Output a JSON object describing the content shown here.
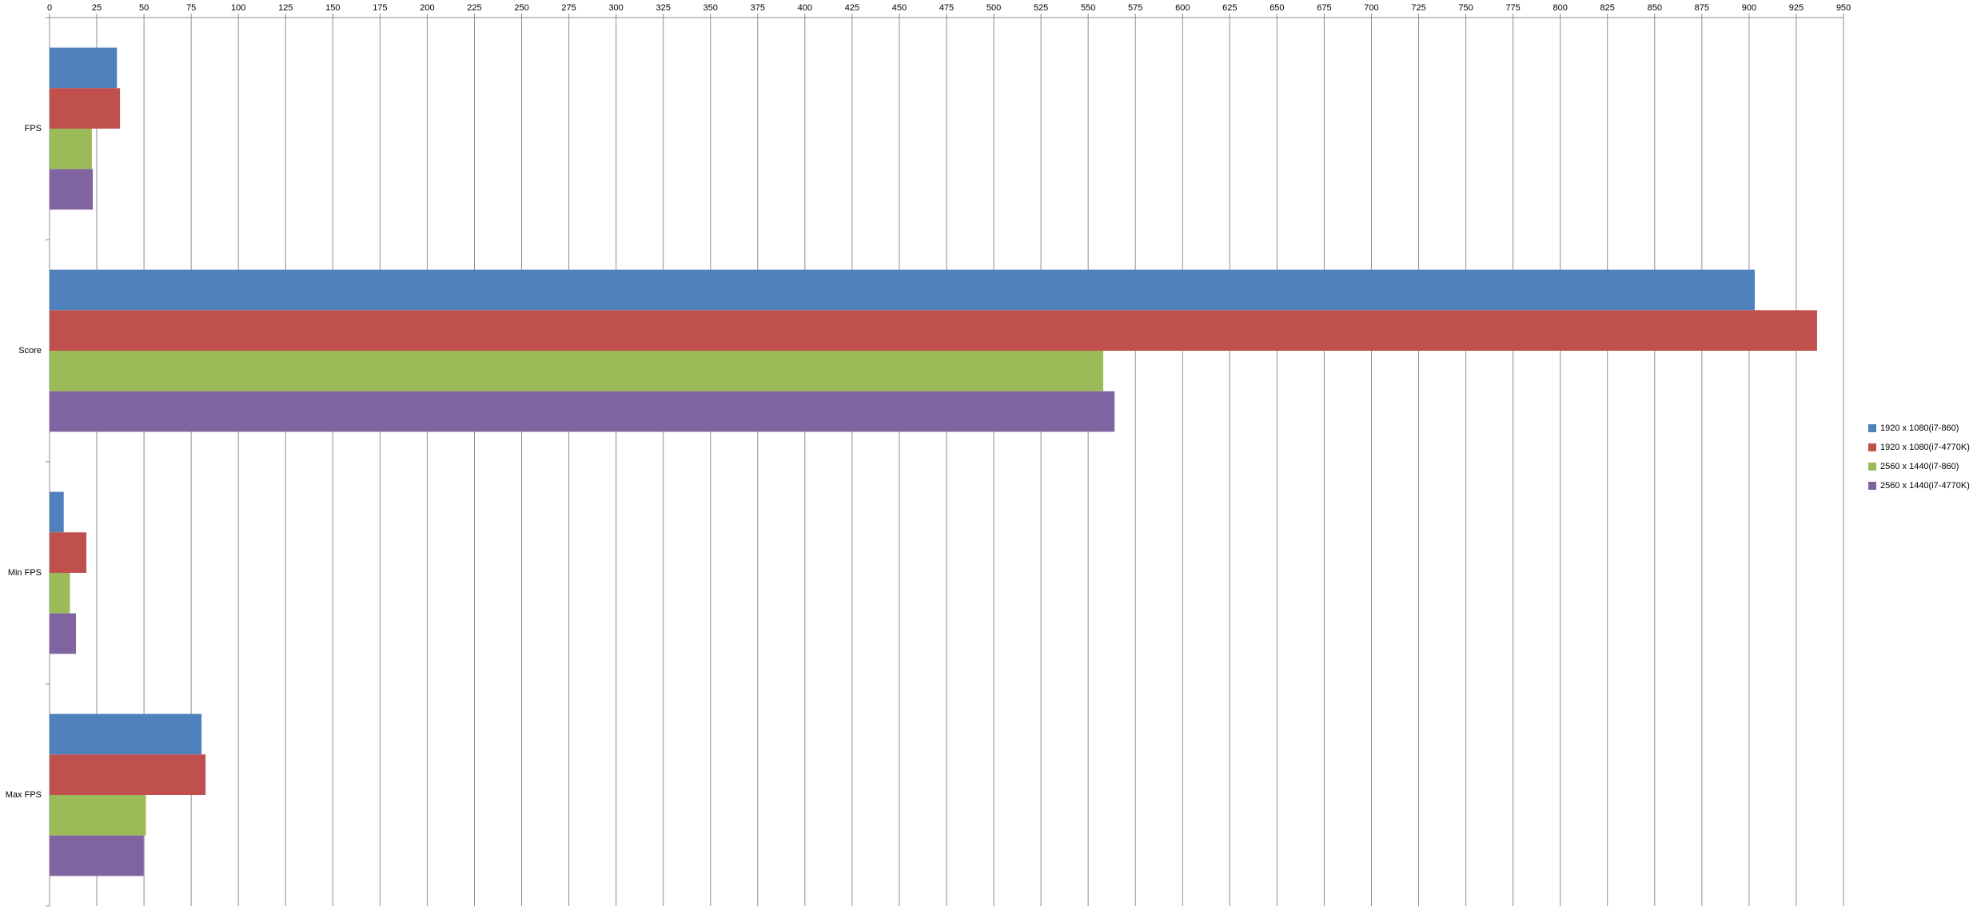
{
  "chart_data": {
    "type": "hbar",
    "categories": [
      "FPS",
      "Score",
      "Min FPS",
      "Max FPS"
    ],
    "series": [
      {
        "name": "1920 x 1080(i7-860)",
        "color": "#4f81bd",
        "values": [
          35.7,
          903,
          7.5,
          80.5
        ]
      },
      {
        "name": "1920 x 1080(i7-4770K)",
        "color": "#c0504d",
        "values": [
          37.3,
          936,
          19.5,
          82.6
        ]
      },
      {
        "name": "2560 x 1440(i7-860)",
        "color": "#9bbb59",
        "values": [
          22.4,
          558,
          10.8,
          51
        ]
      },
      {
        "name": "2560 x 1440(i7-4770K)",
        "color": "#8064a2",
        "values": [
          22.9,
          564,
          14,
          49.8
        ]
      }
    ],
    "xlim": [
      0,
      950
    ],
    "xticks": [
      0,
      25,
      50,
      75,
      100,
      125,
      150,
      175,
      200,
      225,
      250,
      275,
      300,
      325,
      350,
      375,
      400,
      425,
      450,
      475,
      500,
      525,
      550,
      575,
      600,
      625,
      650,
      675,
      700,
      725,
      750,
      775,
      800,
      825,
      850,
      875,
      900,
      925,
      950
    ],
    "grid": true,
    "legend": "right"
  }
}
